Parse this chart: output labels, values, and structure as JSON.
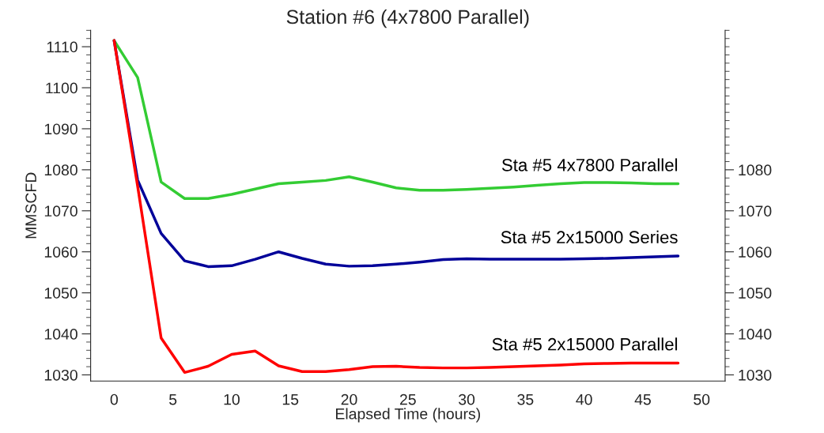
{
  "chart_data": {
    "type": "line",
    "title": "Station #6 (4x7800 Parallel)",
    "xlabel": "Elapsed Time (hours)",
    "ylabel": "MMSCFD",
    "x": [
      0,
      2,
      4,
      6,
      8,
      10,
      12,
      14,
      16,
      18,
      20,
      22,
      24,
      26,
      28,
      30,
      32,
      34,
      36,
      38,
      40,
      42,
      44,
      46,
      48
    ],
    "series": [
      {
        "name": "Sta #5 4x7800 Parallel",
        "color": "#33cc33",
        "values": [
          1111.5,
          1102.5,
          1077,
          1073,
          1073,
          1074,
          1075.3,
          1076.6,
          1077,
          1077.4,
          1078.3,
          1077,
          1075.6,
          1075,
          1075,
          1075.2,
          1075.5,
          1075.8,
          1076.2,
          1076.6,
          1076.9,
          1076.9,
          1076.8,
          1076.6,
          1076.6
        ]
      },
      {
        "name": "Sta #5 2x15000 Series",
        "color": "#000099",
        "values": [
          1111.5,
          1077.5,
          1064.5,
          1057.8,
          1056.4,
          1056.6,
          1058.2,
          1060,
          1058.4,
          1057,
          1056.5,
          1056.6,
          1057,
          1057.5,
          1058.1,
          1058.3,
          1058.2,
          1058.2,
          1058.2,
          1058.2,
          1058.3,
          1058.4,
          1058.6,
          1058.8,
          1059
        ]
      },
      {
        "name": "Sta #5 2x15000 Parallel",
        "color": "#ff0000",
        "values": [
          1111.5,
          1076,
          1039,
          1030.6,
          1032.1,
          1035,
          1035.8,
          1032.2,
          1030.8,
          1030.8,
          1031.3,
          1032,
          1032.1,
          1031.8,
          1031.7,
          1031.7,
          1031.8,
          1032,
          1032.2,
          1032.4,
          1032.7,
          1032.8,
          1032.9,
          1032.9,
          1032.9
        ]
      }
    ],
    "xlim": [
      -2,
      52
    ],
    "xticks": [
      0,
      5,
      10,
      15,
      20,
      25,
      30,
      35,
      40,
      45,
      50
    ],
    "ylim": [
      1028.5,
      1114
    ],
    "yticks": [
      1030,
      1040,
      1050,
      1060,
      1070,
      1080,
      1090,
      1100,
      1110
    ],
    "y2lim": [
      1028.5,
      1114
    ],
    "y2ticks": [
      1030,
      1040,
      1050,
      1060,
      1070,
      1080
    ],
    "grid": false,
    "legend": false,
    "marker": "none",
    "line_style": "solid"
  }
}
